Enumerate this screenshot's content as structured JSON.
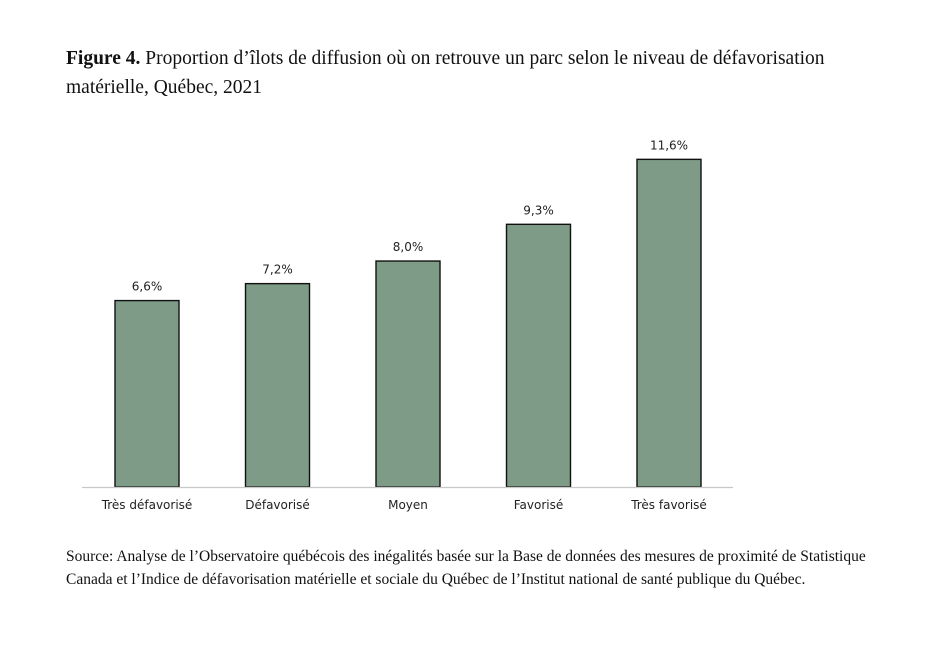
{
  "figure": {
    "label": "Figure 4.",
    "title": "Proportion d’îlots de diffusion où on retrouve un parc selon le niveau de défavorisation matérielle, Québec, 2021",
    "source": "Source: Analyse de l’Observatoire québécois des inégalités basée sur la Base de données des mesures de proximité de Statistique Canada et l’Indice de défavorisation matérielle et sociale du Québec de l’Institut national de santé publique du Québec."
  },
  "chart_data": {
    "type": "bar",
    "title": "Proportion d’îlots de diffusion où on retrouve un parc selon le niveau de défavorisation matérielle, Québec, 2021",
    "categories": [
      "Très défavorisé",
      "Défavorisé",
      "Moyen",
      "Favorisé",
      "Très favorisé"
    ],
    "values": [
      6.6,
      7.2,
      8.0,
      9.3,
      11.6
    ],
    "value_labels": [
      "6,6%",
      "7,2%",
      "8,0%",
      "9,3%",
      "11,6%"
    ],
    "xlabel": "",
    "ylabel": "",
    "ylim": [
      0,
      12
    ],
    "grid": false,
    "bar_color": "#7d9b87",
    "bar_edge_color": "#111111",
    "axis_color": "#c8c8c8"
  }
}
